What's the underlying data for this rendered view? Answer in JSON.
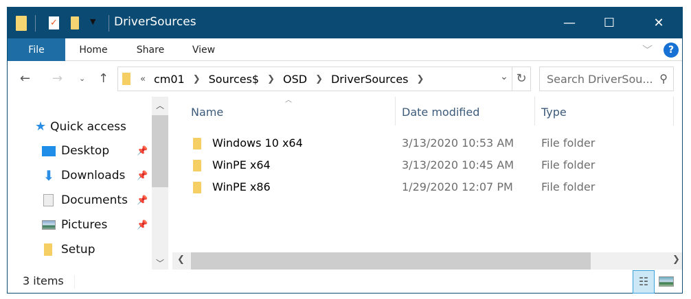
{
  "window": {
    "title": "DriverSources",
    "controls": {
      "minimize": "—",
      "maximize": "☐",
      "close": "✕"
    }
  },
  "ribbon": {
    "tabs": [
      "File",
      "Home",
      "Share",
      "View"
    ],
    "help": "?"
  },
  "address": {
    "overflow": "«",
    "segments": [
      "cm01",
      "Sources$",
      "OSD",
      "DriverSources"
    ]
  },
  "search": {
    "placeholder": "Search DriverSou..."
  },
  "nav": {
    "quick_access": "Quick access",
    "items": [
      {
        "label": "Desktop",
        "icon": "desktop-icon",
        "pinned": true
      },
      {
        "label": "Downloads",
        "icon": "download-icon",
        "pinned": true
      },
      {
        "label": "Documents",
        "icon": "documents-icon",
        "pinned": true
      },
      {
        "label": "Pictures",
        "icon": "pictures-icon",
        "pinned": true
      },
      {
        "label": "Setup",
        "icon": "folder-icon",
        "pinned": false
      }
    ]
  },
  "columns": [
    "Name",
    "Date modified",
    "Type"
  ],
  "files": [
    {
      "name": "Windows 10 x64",
      "date": "3/13/2020 10:53 AM",
      "type": "File folder"
    },
    {
      "name": "WinPE x64",
      "date": "3/13/2020 10:45 AM",
      "type": "File folder"
    },
    {
      "name": "WinPE x86",
      "date": "1/29/2020 12:07 PM",
      "type": "File folder"
    }
  ],
  "status": {
    "count": "3 items"
  },
  "colors": {
    "titlebar": "#0b4a73",
    "file_tab": "#1e6ea5",
    "header_text": "#3c5a7a"
  }
}
